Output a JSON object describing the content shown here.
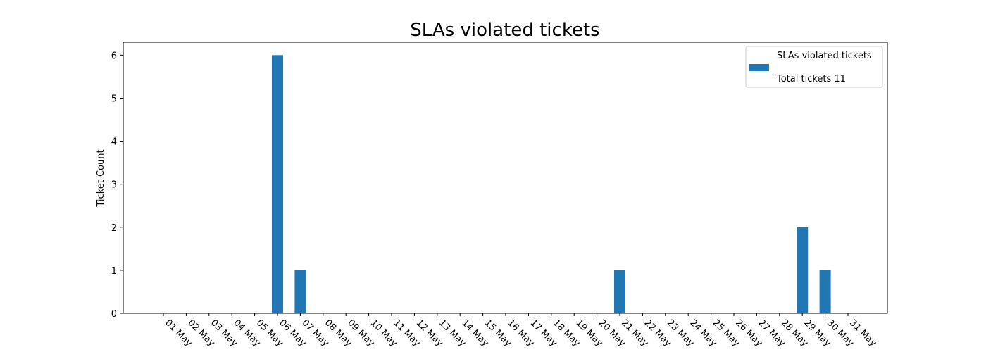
{
  "chart_data": {
    "type": "bar",
    "title": "SLAs violated tickets",
    "xlabel": "",
    "ylabel": "Ticket Count",
    "categories": [
      "01 May",
      "02 May",
      "03 May",
      "04 May",
      "05 May",
      "06 May",
      "07 May",
      "08 May",
      "09 May",
      "10 May",
      "11 May",
      "12 May",
      "13 May",
      "14 May",
      "15 May",
      "16 May",
      "17 May",
      "18 May",
      "19 May",
      "20 May",
      "21 May",
      "22 May",
      "23 May",
      "24 May",
      "25 May",
      "26 May",
      "27 May",
      "28 May",
      "29 May",
      "30 May",
      "31 May"
    ],
    "series": [
      {
        "name": "SLAs violated tickets",
        "color": "#1f77b4",
        "values": [
          0,
          0,
          0,
          0,
          0,
          6,
          1,
          0,
          0,
          0,
          0,
          0,
          0,
          0,
          0,
          0,
          0,
          0,
          0,
          0,
          1,
          0,
          0,
          0,
          0,
          0,
          0,
          0,
          2,
          1,
          0
        ]
      }
    ],
    "ylim": [
      0,
      6.3
    ],
    "yticks": [
      0,
      1,
      2,
      3,
      4,
      5,
      6
    ],
    "grid": false,
    "legend": {
      "placement": "top-right",
      "entries": [
        "SLAs violated tickets",
        "Total tickets 11"
      ]
    }
  }
}
